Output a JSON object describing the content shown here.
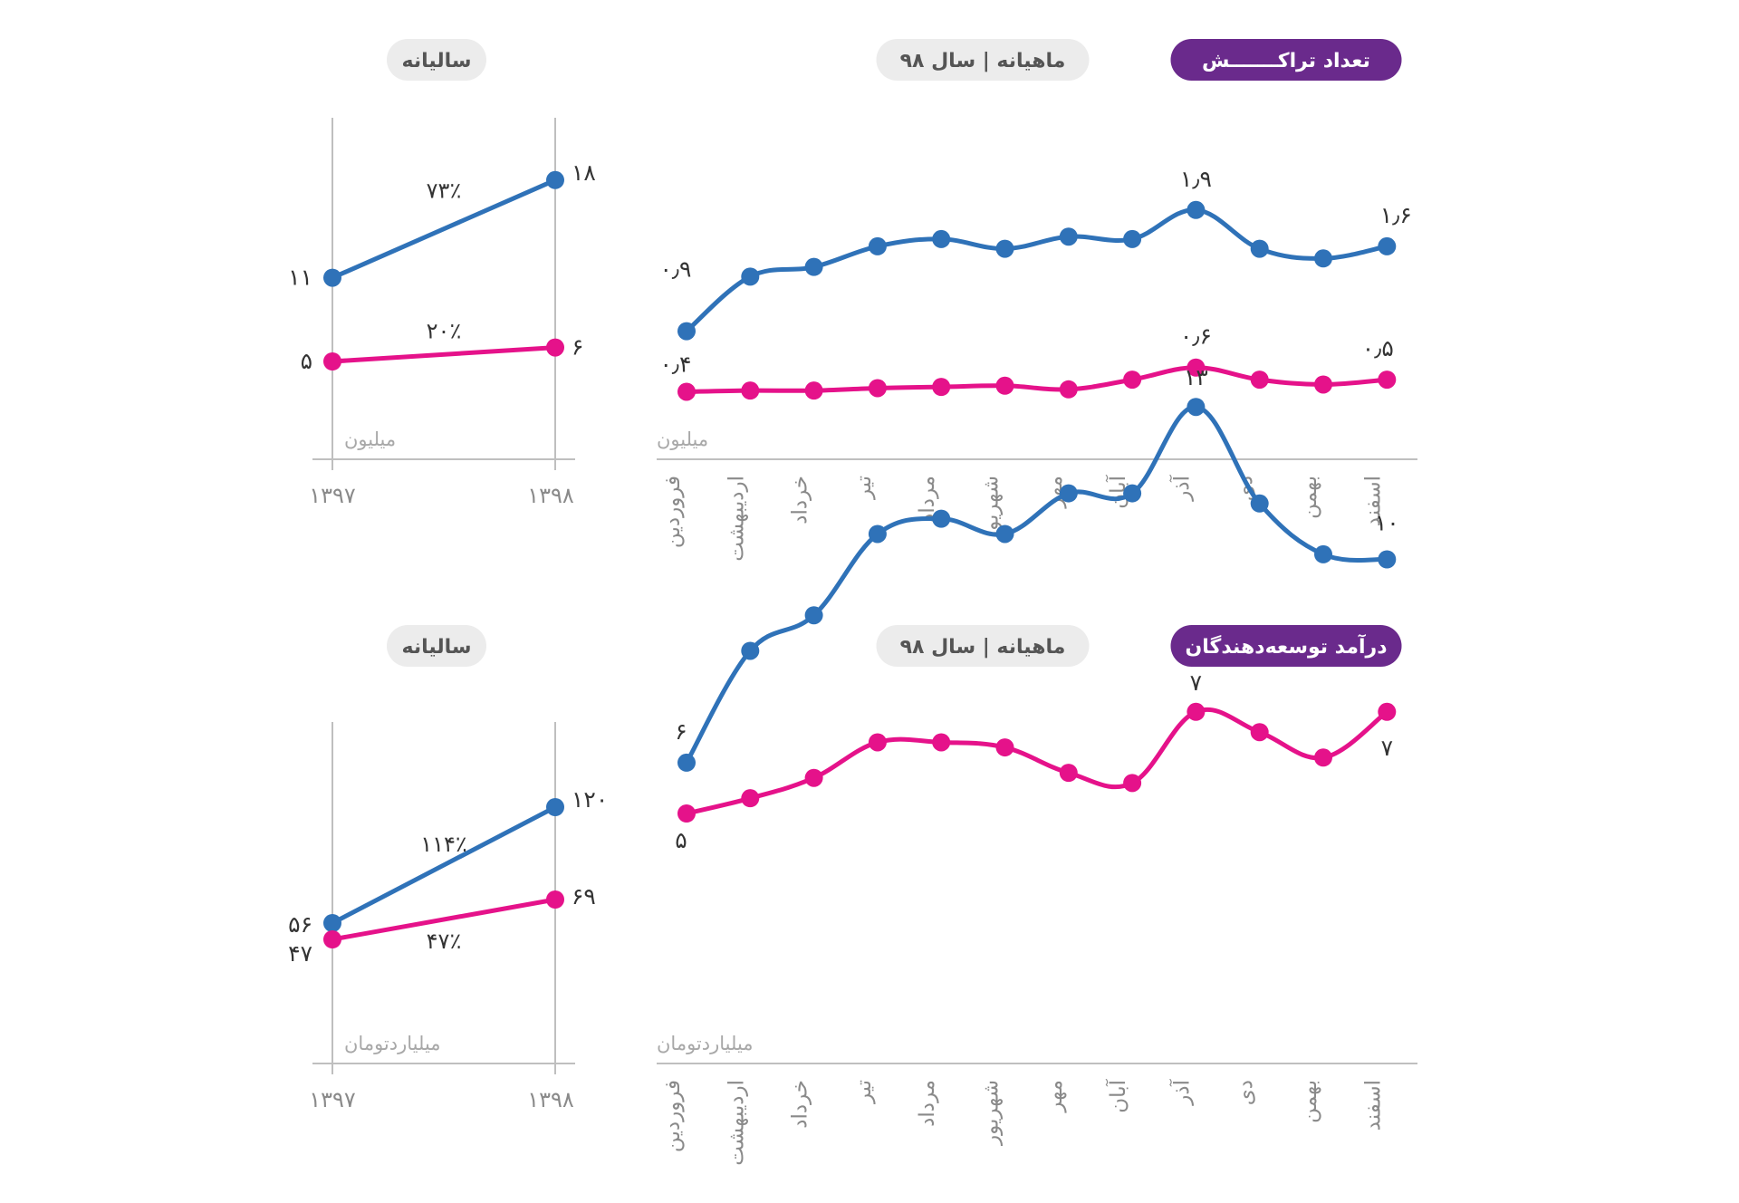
{
  "colors": {
    "blue": "#2f72b8",
    "pink": "#e5128a",
    "purple": "#6a2a8c",
    "pill_gray": "#ececec",
    "axis": "#bfbfbf",
    "text_gray": "#8a8a8a"
  },
  "months": [
    "فروردین",
    "اردیبهشت",
    "خرداد",
    "تیر",
    "مرداد",
    "شهریور",
    "مهر",
    "آبان",
    "آذر",
    "دی",
    "بهمن",
    "اسفند"
  ],
  "years": [
    "۱۳۹۷",
    "۱۳۹۸"
  ],
  "chart_data": [
    {
      "type": "line",
      "title": "تعداد تراکـــــــش",
      "subtitle": "ماهیانه | سال ۹۸",
      "ylabel": "میلیون",
      "categories": [
        "فروردین",
        "اردیبهشت",
        "خرداد",
        "تیر",
        "مرداد",
        "شهریور",
        "مهر",
        "آبان",
        "آذر",
        "دی",
        "بهمن",
        "اسفند"
      ],
      "ylim": [
        0,
        2.2
      ],
      "series": [
        {
          "name": "blue",
          "values": [
            0.9,
            1.35,
            1.43,
            1.6,
            1.66,
            1.58,
            1.68,
            1.66,
            1.9,
            1.58,
            1.5,
            1.6
          ]
        },
        {
          "name": "pink",
          "values": [
            0.4,
            0.41,
            0.41,
            0.43,
            0.44,
            0.45,
            0.42,
            0.5,
            0.6,
            0.5,
            0.46,
            0.5
          ]
        }
      ],
      "annotations": [
        {
          "series": 0,
          "index": 0,
          "text": "۰٫۹"
        },
        {
          "series": 0,
          "index": 8,
          "text": "۱٫۹"
        },
        {
          "series": 0,
          "index": 11,
          "text": "۱٫۶"
        },
        {
          "series": 1,
          "index": 0,
          "text": "۰٫۴"
        },
        {
          "series": 1,
          "index": 8,
          "text": "۰٫۶"
        },
        {
          "series": 1,
          "index": 11,
          "text": "۰٫۵"
        }
      ]
    },
    {
      "type": "line",
      "title": "سالیانه",
      "ylabel": "میلیون",
      "categories": [
        "۱۳۹۷",
        "۱۳۹۸"
      ],
      "ylim": [
        0,
        22
      ],
      "series": [
        {
          "name": "blue",
          "values": [
            11,
            18
          ],
          "labels": [
            "۱۱",
            "۱۸"
          ],
          "growth": "۷۳٪"
        },
        {
          "name": "pink",
          "values": [
            5,
            6
          ],
          "labels": [
            "۵",
            "۶"
          ],
          "growth": "۲۰٪"
        }
      ]
    },
    {
      "type": "line",
      "title": "درآمد توسعه‌دهندگان",
      "subtitle": "ماهیانه | سال ۹۸",
      "ylabel": "میلیاردتومان",
      "categories": [
        "فروردین",
        "اردیبهشت",
        "خرداد",
        "تیر",
        "مرداد",
        "شهریور",
        "مهر",
        "آبان",
        "آذر",
        "دی",
        "بهمن",
        "اسفند"
      ],
      "ylim": [
        0,
        14
      ],
      "series": [
        {
          "name": "blue",
          "values": [
            6,
            8.2,
            8.9,
            10.5,
            10.8,
            10.5,
            11.3,
            11.3,
            13,
            11.1,
            10.1,
            10
          ]
        },
        {
          "name": "pink",
          "values": [
            5,
            5.3,
            5.7,
            6.4,
            6.4,
            6.3,
            5.8,
            5.6,
            7,
            6.6,
            6.1,
            7
          ]
        }
      ],
      "annotations": [
        {
          "series": 0,
          "index": 0,
          "text": "۶"
        },
        {
          "series": 0,
          "index": 8,
          "text": "۱۳"
        },
        {
          "series": 0,
          "index": 11,
          "text": "۱۰"
        },
        {
          "series": 1,
          "index": 0,
          "text": "۵"
        },
        {
          "series": 1,
          "index": 8,
          "text": "۷"
        },
        {
          "series": 1,
          "index": 11,
          "text": "۷"
        }
      ]
    },
    {
      "type": "line",
      "title": "سالیانه",
      "ylabel": "میلیاردتومان",
      "categories": [
        "۱۳۹۷",
        "۱۳۹۸"
      ],
      "ylim": [
        0,
        140
      ],
      "series": [
        {
          "name": "blue",
          "values": [
            56,
            120
          ],
          "labels": [
            "۵۶",
            "۱۲۰"
          ],
          "growth": "۱۱۴٪"
        },
        {
          "name": "pink",
          "values": [
            47,
            69
          ],
          "labels": [
            "۴۷",
            "۶۹"
          ],
          "growth": "۴۷٪"
        }
      ]
    }
  ]
}
